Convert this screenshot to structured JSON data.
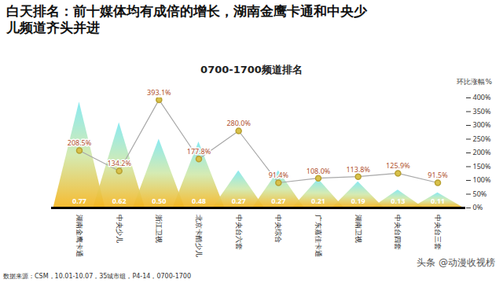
{
  "chart_data": {
    "type": "bar",
    "heading": "白天排名：前十媒体均有成倍的增长，湖南金鹰卡通和中央少儿频道齐头并进",
    "title": "0700-1700频道排名",
    "y_label": "环比涨幅%",
    "categories": [
      "湖南金鹰卡通",
      "中央少儿",
      "浙江卫视",
      "北京卡酷少儿",
      "中央台六套",
      "中央综合",
      "广东嘉佳卡通",
      "湖南卫视",
      "中央台四套",
      "中央台三套"
    ],
    "series": [
      {
        "type": "bar",
        "marker": "triangle",
        "color": "#7ee8f2",
        "axis": "y2",
        "data_labels": true,
        "values": [
          0.77,
          0.62,
          0.5,
          0.48,
          0.27,
          0.27,
          0.21,
          0.19,
          0.13,
          0.11
        ],
        "value_labels": [
          "0.77",
          "0.62",
          "0.50",
          "0.48",
          "0.27",
          "0.27",
          "0.21",
          "0.19",
          "0.13",
          "0.11"
        ]
      },
      {
        "type": "line",
        "marker": "circle",
        "color": "#a8a8a8",
        "data_labels": true,
        "values": [
          208.5,
          134.2,
          393.1,
          177.8,
          280.0,
          91.4,
          108.0,
          113.8,
          125.9,
          91.5
        ],
        "value_labels": [
          "208.5%",
          "134.2%",
          "393.1%",
          "177.8%",
          "280.0%",
          "91.4%",
          "108.0%",
          "113.8%",
          "125.9%",
          "91.5%"
        ]
      }
    ],
    "ylim": [
      0,
      400
    ],
    "yticks": [
      {
        "value": 0,
        "label": "0%"
      },
      {
        "value": 50,
        "label": "50%"
      },
      {
        "value": 100,
        "label": "100%"
      },
      {
        "value": 150,
        "label": "150%"
      },
      {
        "value": 200,
        "label": "200%"
      },
      {
        "value": 250,
        "label": "250%"
      },
      {
        "value": 300,
        "label": "300%"
      },
      {
        "value": 350,
        "label": "350%"
      },
      {
        "value": 400,
        "label": "400%"
      }
    ],
    "y2lim": [
      0,
      0.8
    ],
    "grid": false,
    "source": "数据来源：CSM，10.01-10.07，35城市组，P4-14，0700-1700",
    "watermark": "头条 @动漫收视榜"
  }
}
